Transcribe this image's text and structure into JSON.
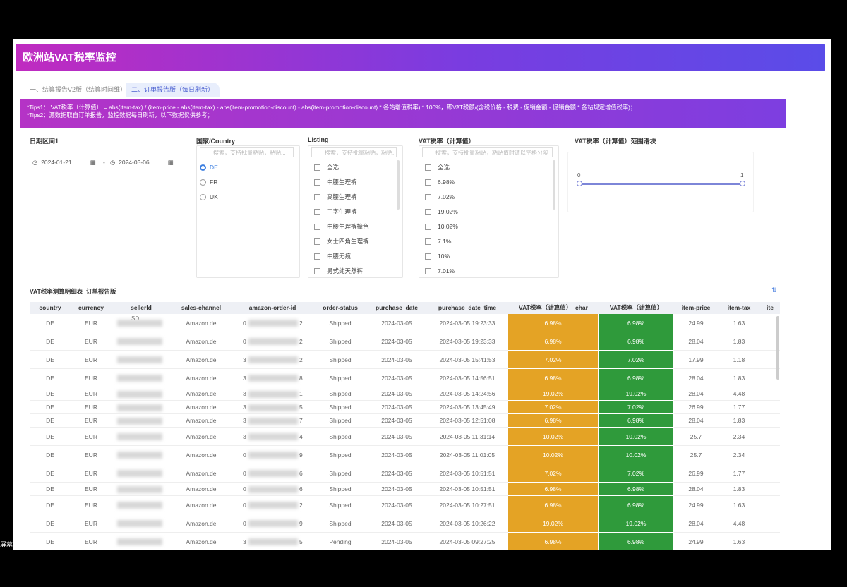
{
  "header": {
    "title": "欧洲站VAT税率监控"
  },
  "tabs": [
    "一、结算报告V2版（结算时间维）",
    "二、订单报告版（每日刷新）"
  ],
  "tips": [
    "*Tips1：  VAT税率（计算值） = abs(item-tax) / (item-price - abs(item-tax) - abs(item-promotion-discount) - abs(item-promotion-discount) * 各站增值税率) * 100%，即VAT税额/(含税价格 - 税费 - 促销金额 - 促销金额 * 各站规定增值税率)；",
    "*Tips2：源数据取自订单报告，监控数据每日刷新，以下数据仅供参考；"
  ],
  "filters": {
    "date": {
      "label": "日期区间1",
      "start": "2024-01-21",
      "end": "2024-03-06",
      "separator": "-"
    },
    "country": {
      "label": "国家/Country",
      "placeholder": "搜索，支持批量粘贴，粘贴...",
      "options": [
        "DE",
        "FR",
        "UK"
      ]
    },
    "listing": {
      "label": "Listing",
      "placeholder": "搜索，支持批量粘贴，粘贴...",
      "options": [
        "全选",
        "中腰生理裤",
        "高腰生理裤",
        "丁字生理裤",
        "中腰生理裤撞色",
        "女士四角生理裤",
        "中腰无痕",
        "男式纯天然裤"
      ]
    },
    "vat": {
      "label": "VAT税率（计算值）",
      "placeholder": "搜索，支持批量粘贴，粘贴值时请以空格分隔",
      "options": [
        "全选",
        "6.98%",
        "7.02%",
        "19.02%",
        "10.02%",
        "7.1%",
        "10%",
        "7.01%"
      ]
    },
    "range": {
      "label": "VAT税率（计算值）范围滑块",
      "min": 0,
      "max": 1
    }
  },
  "table": {
    "title": "VAT税率测算明细表_订单报告版",
    "columns": [
      "country",
      "currency",
      "sellerId",
      "sales-channel",
      "amazon-order-id",
      "order-status",
      "purchase_date",
      "purchase_date_time",
      "VAT税率（计算值）_char",
      "VAT税率（计算值）",
      "item-price",
      "item-tax",
      "ite"
    ],
    "rows": [
      {
        "country": "DE",
        "currency": "EUR",
        "seller": "SD",
        "channel": "Amazon.de",
        "order_start": "0",
        "order_end": "2",
        "status": "Shipped",
        "date": "2024-03-05",
        "datetime": "2024-03-05 19:23:33",
        "vat_char": "6.98%",
        "vat": "6.98%",
        "price": "24.99",
        "tax": "1.63"
      },
      {
        "country": "DE",
        "currency": "EUR",
        "channel": "Amazon.de",
        "order_start": "0",
        "order_end": "2",
        "status": "Shipped",
        "date": "2024-03-05",
        "datetime": "2024-03-05 19:23:33",
        "vat_char": "6.98%",
        "vat": "6.98%",
        "price": "28.04",
        "tax": "1.83"
      },
      {
        "country": "DE",
        "currency": "EUR",
        "channel": "Amazon.de",
        "order_start": "3",
        "order_end": "2",
        "status": "Shipped",
        "date": "2024-03-05",
        "datetime": "2024-03-05 15:41:53",
        "vat_char": "7.02%",
        "vat": "7.02%",
        "price": "17.99",
        "tax": "1.18"
      },
      {
        "country": "DE",
        "currency": "EUR",
        "channel": "Amazon.de",
        "order_start": "3",
        "order_end": "8",
        "status": "Shipped",
        "date": "2024-03-05",
        "datetime": "2024-03-05 14:56:51",
        "vat_char": "6.98%",
        "vat": "6.98%",
        "price": "28.04",
        "tax": "1.83"
      },
      {
        "country": "DE",
        "currency": "EUR",
        "channel": "Amazon.de",
        "order_start": "3",
        "order_end": "1",
        "status": "Shipped",
        "date": "2024-03-05",
        "datetime": "2024-03-05 14:24:56",
        "vat_char": "19.02%",
        "vat": "19.02%",
        "price": "28.04",
        "tax": "4.48"
      },
      {
        "country": "DE",
        "currency": "EUR",
        "channel": "Amazon.de",
        "order_start": "3",
        "order_end": "5",
        "status": "Shipped",
        "date": "2024-03-05",
        "datetime": "2024-03-05 13:45:49",
        "vat_char": "7.02%",
        "vat": "7.02%",
        "price": "26.99",
        "tax": "1.77"
      },
      {
        "country": "DE",
        "currency": "EUR",
        "channel": "Amazon.de",
        "order_start": "3",
        "order_end": "7",
        "status": "Shipped",
        "date": "2024-03-05",
        "datetime": "2024-03-05 12:51:08",
        "vat_char": "6.98%",
        "vat": "6.98%",
        "price": "28.04",
        "tax": "1.83"
      },
      {
        "country": "DE",
        "currency": "EUR",
        "channel": "Amazon.de",
        "order_start": "3",
        "order_end": "4",
        "status": "Shipped",
        "date": "2024-03-05",
        "datetime": "2024-03-05 11:31:14",
        "vat_char": "10.02%",
        "vat": "10.02%",
        "price": "25.7",
        "tax": "2.34"
      },
      {
        "country": "DE",
        "currency": "EUR",
        "channel": "Amazon.de",
        "order_start": "0",
        "order_end": "9",
        "status": "Shipped",
        "date": "2024-03-05",
        "datetime": "2024-03-05 11:01:05",
        "vat_char": "10.02%",
        "vat": "10.02%",
        "price": "25.7",
        "tax": "2.34"
      },
      {
        "country": "DE",
        "currency": "EUR",
        "channel": "Amazon.de",
        "order_start": "0",
        "order_end": "6",
        "status": "Shipped",
        "date": "2024-03-05",
        "datetime": "2024-03-05 10:51:51",
        "vat_char": "7.02%",
        "vat": "7.02%",
        "price": "26.99",
        "tax": "1.77"
      },
      {
        "country": "DE",
        "currency": "EUR",
        "channel": "Amazon.de",
        "order_start": "0",
        "order_end": "6",
        "status": "Shipped",
        "date": "2024-03-05",
        "datetime": "2024-03-05 10:51:51",
        "vat_char": "6.98%",
        "vat": "6.98%",
        "price": "28.04",
        "tax": "1.83"
      },
      {
        "country": "DE",
        "currency": "EUR",
        "channel": "Amazon.de",
        "order_start": "0",
        "order_end": "2",
        "status": "Shipped",
        "date": "2024-03-05",
        "datetime": "2024-03-05 10:27:51",
        "vat_char": "6.98%",
        "vat": "6.98%",
        "price": "24.99",
        "tax": "1.63"
      },
      {
        "country": "DE",
        "currency": "EUR",
        "channel": "Amazon.de",
        "order_start": "0",
        "order_end": "9",
        "status": "Shipped",
        "date": "2024-03-05",
        "datetime": "2024-03-05 10:26:22",
        "vat_char": "19.02%",
        "vat": "19.02%",
        "price": "28.04",
        "tax": "4.48"
      },
      {
        "country": "DE",
        "currency": "EUR",
        "channel": "Amazon.de",
        "order_start": "3",
        "order_end": "5",
        "status": "Pending",
        "date": "2024-03-05",
        "datetime": "2024-03-05 09:27:25",
        "vat_char": "6.98%",
        "vat": "6.98%",
        "price": "24.99",
        "tax": "1.63"
      }
    ]
  },
  "overlay": "屏幕"
}
